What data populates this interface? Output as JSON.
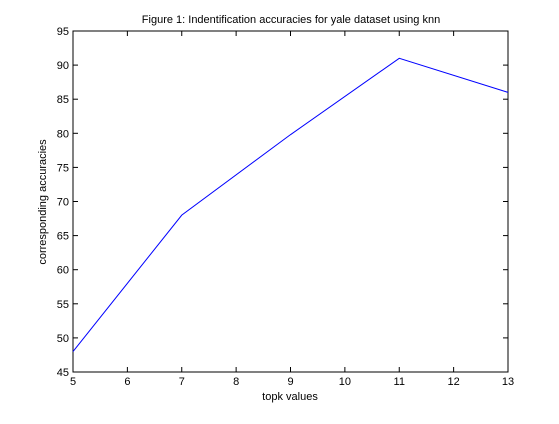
{
  "chart_data": {
    "type": "line",
    "title": "Figure 1: Indentification accuracies for yale dataset using knn",
    "xlabel": "topk values",
    "ylabel": "corresponding accuracies",
    "x": [
      5,
      7,
      9,
      11,
      13
    ],
    "series": [
      {
        "values": [
          48,
          68,
          79.8,
          91,
          86
        ],
        "color": "#0000ff"
      }
    ],
    "xlim": [
      5,
      13
    ],
    "ylim": [
      45,
      95
    ],
    "xticks": [
      5,
      6,
      7,
      8,
      9,
      10,
      11,
      12,
      13
    ],
    "yticks": [
      45,
      50,
      55,
      60,
      65,
      70,
      75,
      80,
      85,
      90,
      95
    ],
    "grid": false,
    "legend": "none"
  }
}
